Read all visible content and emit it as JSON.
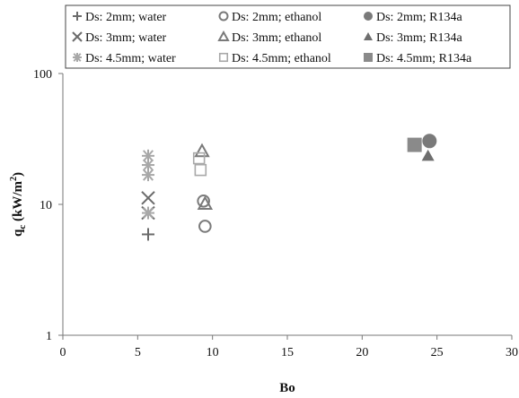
{
  "chart_data": {
    "type": "scatter",
    "title": "",
    "xlabel": "Bo",
    "ylabel": "q",
    "ylabel_sub": "c",
    "ylabel_unit_prefix": " (kW/m",
    "ylabel_unit_sup": "2",
    "ylabel_unit_suffix": ")",
    "xlim": [
      0,
      30
    ],
    "ylim": [
      1,
      100
    ],
    "yscale": "log",
    "grid": false,
    "legend_position": "top",
    "x_ticks": [
      0,
      5,
      10,
      15,
      20,
      25,
      30
    ],
    "y_ticks": [
      1,
      10,
      100
    ],
    "series": [
      {
        "name": "Ds: 2mm; water",
        "marker": "plus",
        "color": "#6b6b6b",
        "points": [
          {
            "x": 5.7,
            "y": 5.9
          }
        ]
      },
      {
        "name": "Ds: 2mm; ethanol",
        "marker": "circle-open",
        "color": "#7a7a7a",
        "points": [
          {
            "x": 9.5,
            "y": 6.8
          },
          {
            "x": 9.4,
            "y": 10.6
          }
        ]
      },
      {
        "name": "Ds: 2mm; R134a",
        "marker": "circle-filled",
        "color": "#7a7a7a",
        "points": [
          {
            "x": 24.5,
            "y": 30.5
          }
        ]
      },
      {
        "name": "Ds: 3mm; water",
        "marker": "x",
        "color": "#6b6b6b",
        "points": [
          {
            "x": 5.7,
            "y": 8.6
          },
          {
            "x": 5.7,
            "y": 11.2
          }
        ]
      },
      {
        "name": "Ds: 3mm; ethanol",
        "marker": "triangle-open",
        "color": "#7a7a7a",
        "points": [
          {
            "x": 9.5,
            "y": 10.1
          },
          {
            "x": 9.3,
            "y": 25.5
          }
        ]
      },
      {
        "name": "Ds: 3mm; R134a",
        "marker": "triangle-filled",
        "color": "#6e6e6e",
        "points": [
          {
            "x": 24.4,
            "y": 23.5
          }
        ]
      },
      {
        "name": "Ds: 4.5mm; water",
        "marker": "asterisk",
        "color": "#a8a8a8",
        "points": [
          {
            "x": 5.7,
            "y": 8.6
          },
          {
            "x": 5.7,
            "y": 16.8
          },
          {
            "x": 5.7,
            "y": 20.0
          },
          {
            "x": 5.7,
            "y": 23.5
          }
        ]
      },
      {
        "name": "Ds: 4.5mm; ethanol",
        "marker": "square-open",
        "color": "#a8a8a8",
        "points": [
          {
            "x": 9.2,
            "y": 18.3
          },
          {
            "x": 9.1,
            "y": 22.5
          }
        ]
      },
      {
        "name": "Ds: 4.5mm; R134a",
        "marker": "square-filled",
        "color": "#8a8a8a",
        "points": [
          {
            "x": 23.5,
            "y": 28.5
          }
        ]
      }
    ]
  }
}
